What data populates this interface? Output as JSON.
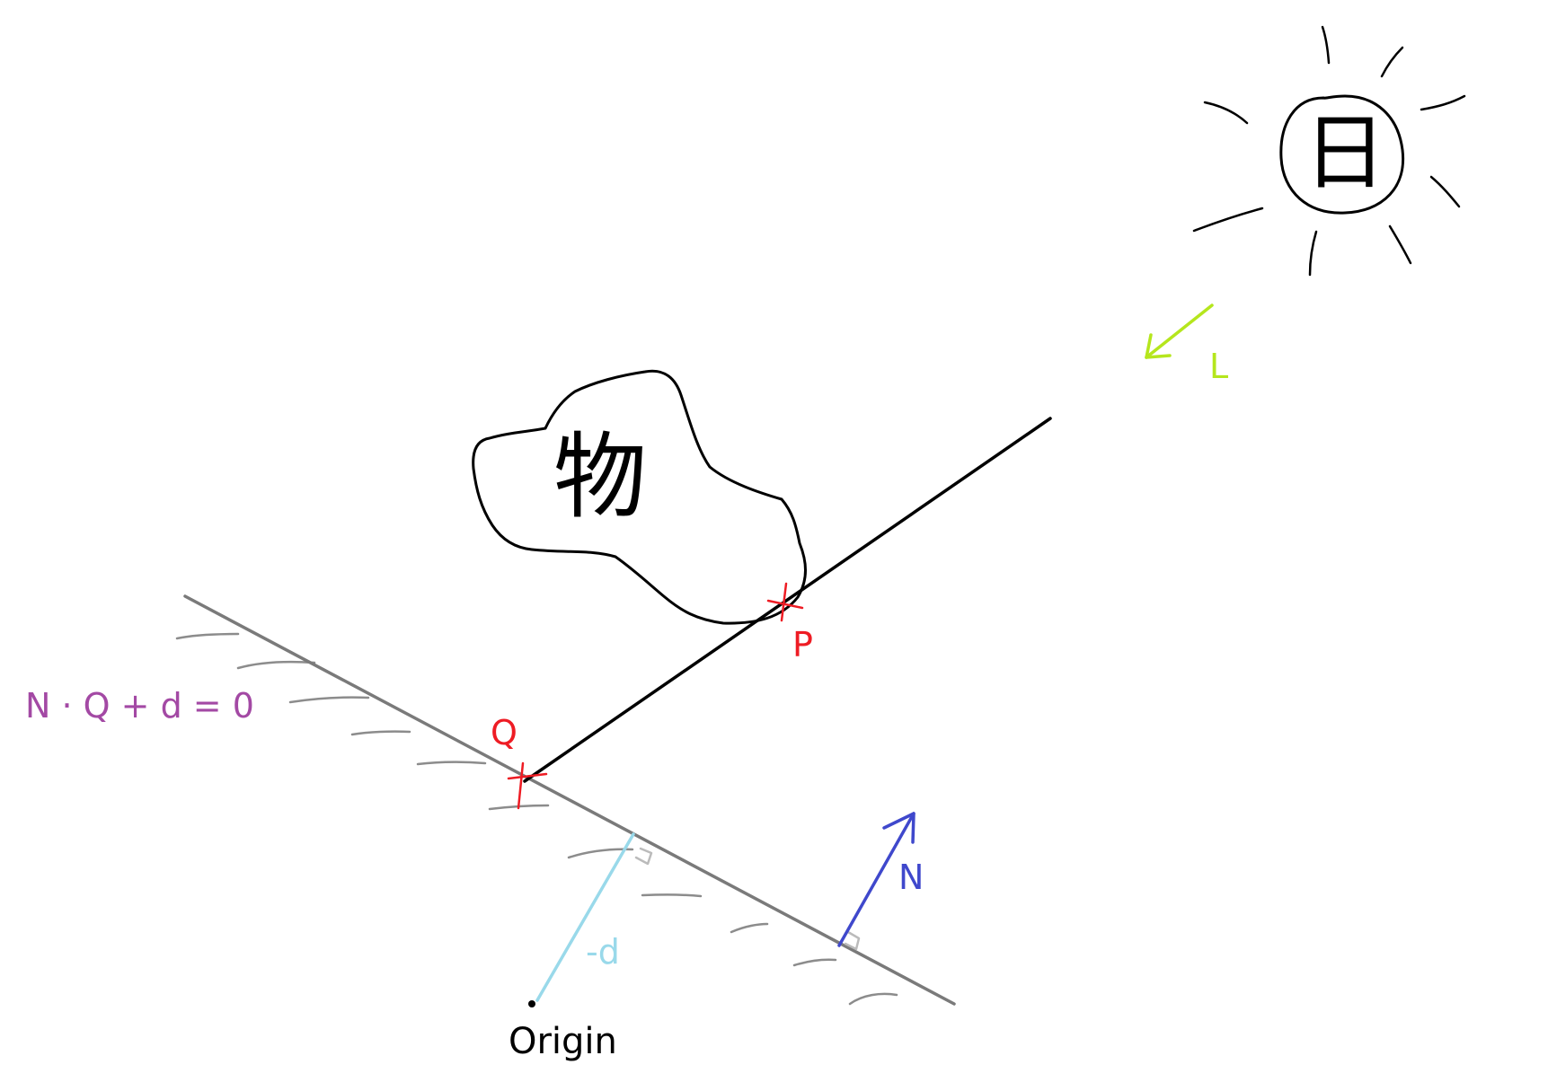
{
  "labels": {
    "sun_char": "日",
    "object_char": "物",
    "light": "L",
    "point_p": "P",
    "point_q": "Q",
    "normal": "N",
    "distance": "-d",
    "origin": "Origin",
    "plane_equation": "N · Q + d = 0"
  },
  "colors": {
    "background": "#ffffff",
    "ink": "#000000",
    "plane": "#7a7a7a",
    "hatch": "#8c8c8c",
    "right_angle": "#bbbbbb",
    "point_marker": "#ee1c24",
    "light_arrow": "#b5e61d",
    "normal_arrow": "#3f48cc",
    "distance_line": "#99d9ea",
    "equation": "#a349a4"
  }
}
